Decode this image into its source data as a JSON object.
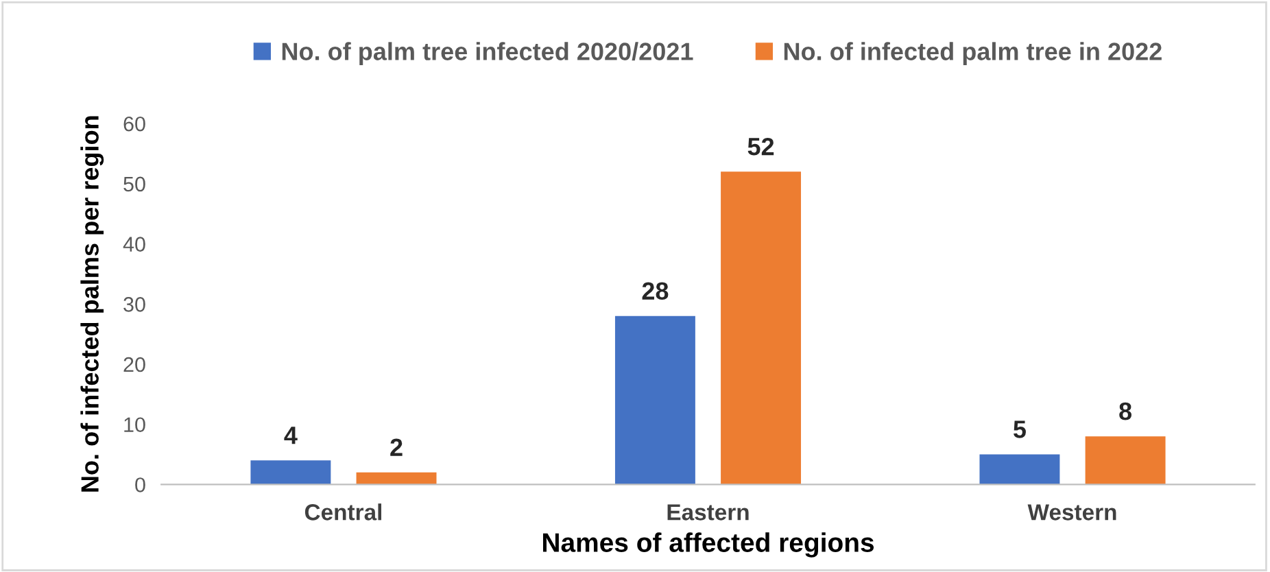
{
  "chart_data": {
    "type": "bar",
    "xlabel": "Names of affected regions",
    "ylabel": "No. of infected palms per region",
    "categories": [
      "Central",
      "Eastern",
      "Western"
    ],
    "series": [
      {
        "name": "No. of palm tree infected 2020/2021",
        "color": "#4472c4",
        "values": [
          4,
          28,
          5
        ]
      },
      {
        "name": "No. of infected palm tree in 2022",
        "color": "#ed7d31",
        "values": [
          2,
          52,
          8
        ]
      }
    ],
    "ylim": [
      0,
      60
    ],
    "yticks": [
      0,
      10,
      20,
      30,
      40,
      50,
      60
    ],
    "grid": false,
    "legend": "top",
    "data_labels": true
  }
}
